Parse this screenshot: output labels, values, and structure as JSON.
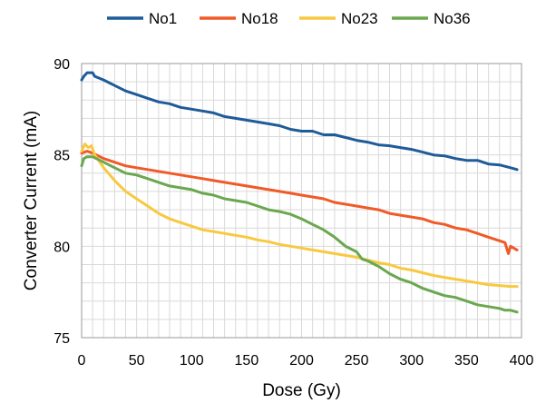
{
  "chart_data": {
    "type": "line",
    "title": "",
    "xlabel": "Dose (Gy)",
    "ylabel": "Converter Current (mA)",
    "xlim": [
      0,
      400
    ],
    "ylim": [
      75,
      90
    ],
    "xticks": [
      0,
      50,
      100,
      150,
      200,
      250,
      300,
      350,
      400
    ],
    "yticks": [
      75,
      80,
      85,
      90
    ],
    "grid": true,
    "legend_position": "top",
    "series": [
      {
        "name": "No1",
        "color": "#1f5b99",
        "points": [
          [
            0,
            89.1
          ],
          [
            2,
            89.3
          ],
          [
            5,
            89.5
          ],
          [
            10,
            89.5
          ],
          [
            12,
            89.3
          ],
          [
            20,
            89.1
          ],
          [
            30,
            88.8
          ],
          [
            40,
            88.5
          ],
          [
            50,
            88.3
          ],
          [
            60,
            88.1
          ],
          [
            70,
            87.9
          ],
          [
            80,
            87.8
          ],
          [
            90,
            87.6
          ],
          [
            100,
            87.5
          ],
          [
            110,
            87.4
          ],
          [
            120,
            87.3
          ],
          [
            130,
            87.1
          ],
          [
            140,
            87.0
          ],
          [
            150,
            86.9
          ],
          [
            160,
            86.8
          ],
          [
            170,
            86.7
          ],
          [
            180,
            86.6
          ],
          [
            190,
            86.4
          ],
          [
            200,
            86.3
          ],
          [
            210,
            86.3
          ],
          [
            220,
            86.1
          ],
          [
            230,
            86.1
          ],
          [
            240,
            85.95
          ],
          [
            250,
            85.8
          ],
          [
            260,
            85.7
          ],
          [
            270,
            85.55
          ],
          [
            280,
            85.5
          ],
          [
            290,
            85.4
          ],
          [
            300,
            85.3
          ],
          [
            310,
            85.15
          ],
          [
            320,
            85.0
          ],
          [
            330,
            84.95
          ],
          [
            340,
            84.8
          ],
          [
            350,
            84.7
          ],
          [
            360,
            84.7
          ],
          [
            370,
            84.5
          ],
          [
            380,
            84.45
          ],
          [
            390,
            84.3
          ],
          [
            396,
            84.2
          ]
        ]
      },
      {
        "name": "No18",
        "color": "#f05a28",
        "points": [
          [
            0,
            85.1
          ],
          [
            5,
            85.2
          ],
          [
            10,
            85.1
          ],
          [
            20,
            84.8
          ],
          [
            30,
            84.6
          ],
          [
            40,
            84.4
          ],
          [
            50,
            84.3
          ],
          [
            60,
            84.2
          ],
          [
            70,
            84.1
          ],
          [
            80,
            84.0
          ],
          [
            90,
            83.9
          ],
          [
            100,
            83.8
          ],
          [
            110,
            83.7
          ],
          [
            120,
            83.6
          ],
          [
            130,
            83.5
          ],
          [
            140,
            83.4
          ],
          [
            150,
            83.3
          ],
          [
            160,
            83.2
          ],
          [
            170,
            83.1
          ],
          [
            180,
            83.0
          ],
          [
            190,
            82.9
          ],
          [
            200,
            82.8
          ],
          [
            210,
            82.7
          ],
          [
            220,
            82.6
          ],
          [
            230,
            82.4
          ],
          [
            240,
            82.3
          ],
          [
            250,
            82.2
          ],
          [
            260,
            82.1
          ],
          [
            270,
            82.0
          ],
          [
            280,
            81.8
          ],
          [
            290,
            81.7
          ],
          [
            300,
            81.6
          ],
          [
            310,
            81.5
          ],
          [
            320,
            81.3
          ],
          [
            330,
            81.2
          ],
          [
            340,
            81.0
          ],
          [
            350,
            80.9
          ],
          [
            360,
            80.7
          ],
          [
            370,
            80.5
          ],
          [
            380,
            80.3
          ],
          [
            385,
            80.2
          ],
          [
            388,
            79.6
          ],
          [
            390,
            80.0
          ],
          [
            396,
            79.8
          ]
        ]
      },
      {
        "name": "No23",
        "color": "#f8c940",
        "points": [
          [
            0,
            85.2
          ],
          [
            3,
            85.6
          ],
          [
            6,
            85.4
          ],
          [
            9,
            85.5
          ],
          [
            12,
            85.0
          ],
          [
            20,
            84.3
          ],
          [
            30,
            83.6
          ],
          [
            40,
            83.0
          ],
          [
            50,
            82.6
          ],
          [
            60,
            82.2
          ],
          [
            70,
            81.8
          ],
          [
            80,
            81.5
          ],
          [
            90,
            81.3
          ],
          [
            100,
            81.1
          ],
          [
            110,
            80.9
          ],
          [
            120,
            80.8
          ],
          [
            130,
            80.7
          ],
          [
            140,
            80.6
          ],
          [
            150,
            80.5
          ],
          [
            160,
            80.35
          ],
          [
            170,
            80.25
          ],
          [
            180,
            80.1
          ],
          [
            190,
            80.0
          ],
          [
            200,
            79.9
          ],
          [
            210,
            79.8
          ],
          [
            220,
            79.7
          ],
          [
            230,
            79.6
          ],
          [
            240,
            79.5
          ],
          [
            250,
            79.4
          ],
          [
            260,
            79.25
          ],
          [
            270,
            79.1
          ],
          [
            280,
            79.0
          ],
          [
            290,
            78.8
          ],
          [
            300,
            78.7
          ],
          [
            310,
            78.55
          ],
          [
            320,
            78.4
          ],
          [
            330,
            78.3
          ],
          [
            340,
            78.2
          ],
          [
            350,
            78.1
          ],
          [
            360,
            78.0
          ],
          [
            370,
            77.9
          ],
          [
            380,
            77.85
          ],
          [
            390,
            77.8
          ],
          [
            396,
            77.8
          ]
        ]
      },
      {
        "name": "No36",
        "color": "#6aa84f",
        "points": [
          [
            0,
            84.4
          ],
          [
            2,
            84.8
          ],
          [
            5,
            84.9
          ],
          [
            10,
            84.9
          ],
          [
            20,
            84.6
          ],
          [
            30,
            84.3
          ],
          [
            40,
            84.0
          ],
          [
            50,
            83.9
          ],
          [
            60,
            83.7
          ],
          [
            70,
            83.5
          ],
          [
            80,
            83.3
          ],
          [
            90,
            83.2
          ],
          [
            100,
            83.1
          ],
          [
            110,
            82.9
          ],
          [
            120,
            82.8
          ],
          [
            130,
            82.6
          ],
          [
            140,
            82.5
          ],
          [
            150,
            82.4
          ],
          [
            160,
            82.2
          ],
          [
            170,
            82.0
          ],
          [
            180,
            81.9
          ],
          [
            190,
            81.75
          ],
          [
            200,
            81.5
          ],
          [
            210,
            81.2
          ],
          [
            220,
            80.9
          ],
          [
            230,
            80.5
          ],
          [
            240,
            80.0
          ],
          [
            250,
            79.7
          ],
          [
            255,
            79.3
          ],
          [
            260,
            79.2
          ],
          [
            270,
            78.9
          ],
          [
            280,
            78.5
          ],
          [
            290,
            78.2
          ],
          [
            300,
            78.0
          ],
          [
            310,
            77.7
          ],
          [
            320,
            77.5
          ],
          [
            330,
            77.3
          ],
          [
            340,
            77.2
          ],
          [
            350,
            77.0
          ],
          [
            360,
            76.8
          ],
          [
            370,
            76.7
          ],
          [
            380,
            76.6
          ],
          [
            385,
            76.5
          ],
          [
            390,
            76.5
          ],
          [
            396,
            76.4
          ]
        ]
      }
    ]
  }
}
